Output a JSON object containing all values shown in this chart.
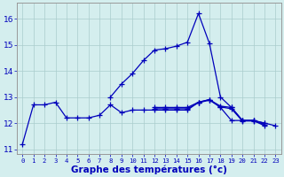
{
  "title": "Graphe des températures (°c)",
  "hours": [
    0,
    1,
    2,
    3,
    4,
    5,
    6,
    7,
    8,
    9,
    10,
    11,
    12,
    13,
    14,
    15,
    16,
    17,
    18,
    19,
    20,
    21,
    22,
    23
  ],
  "curves": [
    [
      11.2,
      12.7,
      12.7,
      12.8,
      12.2,
      12.2,
      12.2,
      12.3,
      12.7,
      12.4,
      12.5,
      12.5,
      12.5,
      12.5,
      12.5,
      12.5,
      12.8,
      12.9,
      12.6,
      12.1,
      12.1,
      12.1,
      11.9,
      null
    ],
    [
      null,
      null,
      null,
      null,
      null,
      null,
      null,
      null,
      13.0,
      13.5,
      13.9,
      14.4,
      14.8,
      14.85,
      14.95,
      15.1,
      16.2,
      15.05,
      13.0,
      12.6,
      12.1,
      12.1,
      12.0,
      11.9
    ],
    [
      null,
      null,
      null,
      null,
      null,
      null,
      null,
      null,
      null,
      null,
      null,
      null,
      12.6,
      12.6,
      12.6,
      12.6,
      12.8,
      12.9,
      12.65,
      12.6,
      12.1,
      12.1,
      12.0,
      null
    ],
    [
      null,
      null,
      null,
      null,
      null,
      null,
      null,
      null,
      null,
      null,
      null,
      null,
      12.55,
      12.55,
      12.55,
      12.55,
      12.78,
      12.88,
      12.62,
      12.55,
      12.08,
      12.08,
      11.95,
      null
    ]
  ],
  "bg_color": "#d4eeee",
  "grid_color": "#aacccc",
  "line_color": "#0000bb",
  "ylim": [
    10.8,
    16.6
  ],
  "yticks": [
    11,
    12,
    13,
    14,
    15,
    16
  ],
  "xlabel_fontsize": 7.5,
  "marker": "+",
  "markersize": 4,
  "linewidth": 0.9
}
